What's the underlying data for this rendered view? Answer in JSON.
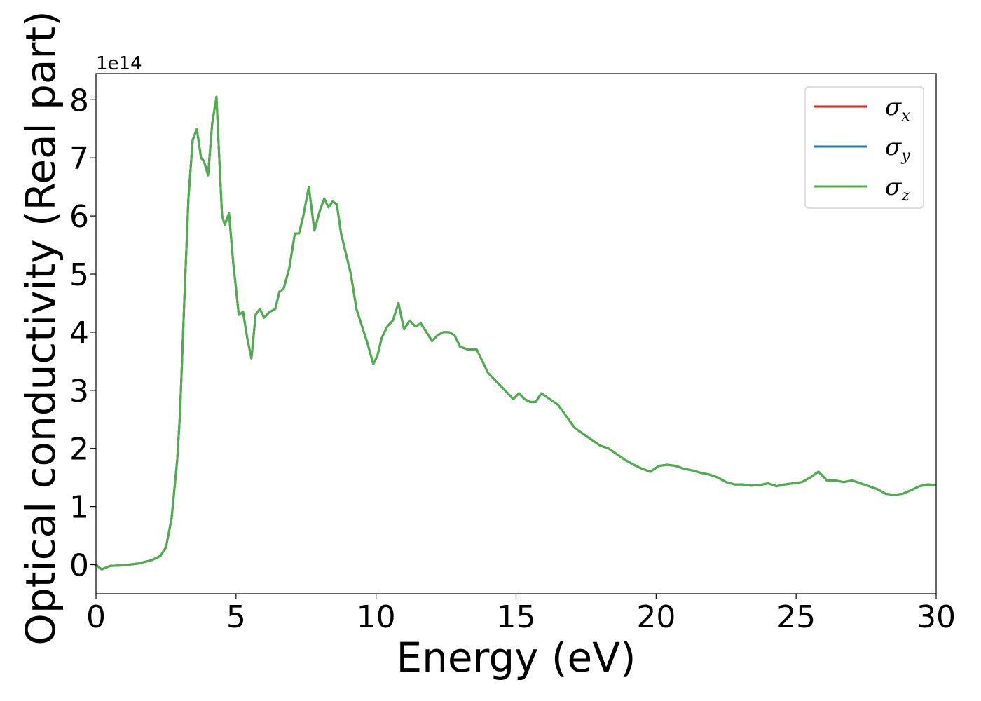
{
  "chart_data": {
    "type": "line",
    "xlabel": "Energy (eV)",
    "ylabel": "Optical conductivity (Real part)",
    "y_offset_label": "1e14",
    "xlim": [
      0,
      30
    ],
    "ylim": [
      -0.5,
      8.45
    ],
    "y_scale": 100000000000000.0,
    "x_ticks": [
      0,
      5,
      10,
      15,
      20,
      25,
      30
    ],
    "y_ticks": [
      0,
      1,
      2,
      3,
      4,
      5,
      6,
      7,
      8
    ],
    "legend_position": "top-right",
    "grid": false,
    "series": [
      {
        "name": "σx",
        "symbol": "σ",
        "subscript": "x",
        "color": "#d62728"
      },
      {
        "name": "σy",
        "symbol": "σ",
        "subscript": "y",
        "color": "#1f77b4"
      },
      {
        "name": "σz",
        "symbol": "σ",
        "subscript": "z",
        "color": "#4daf4a"
      }
    ],
    "x": [
      0,
      0.2,
      0.5,
      1.0,
      1.5,
      2.0,
      2.3,
      2.5,
      2.7,
      2.9,
      3.0,
      3.15,
      3.3,
      3.45,
      3.6,
      3.75,
      3.85,
      4.0,
      4.15,
      4.3,
      4.4,
      4.5,
      4.6,
      4.75,
      4.9,
      5.1,
      5.25,
      5.4,
      5.55,
      5.7,
      5.85,
      6.0,
      6.2,
      6.4,
      6.55,
      6.7,
      6.9,
      7.1,
      7.25,
      7.4,
      7.6,
      7.8,
      8.0,
      8.15,
      8.3,
      8.45,
      8.6,
      8.75,
      8.9,
      9.1,
      9.3,
      9.5,
      9.7,
      9.9,
      10.05,
      10.2,
      10.4,
      10.6,
      10.8,
      11.0,
      11.2,
      11.4,
      11.6,
      11.8,
      12.0,
      12.2,
      12.4,
      12.6,
      12.8,
      13.0,
      13.3,
      13.6,
      13.8,
      14.0,
      14.3,
      14.6,
      14.9,
      15.1,
      15.3,
      15.5,
      15.7,
      15.9,
      16.2,
      16.5,
      16.8,
      17.1,
      17.4,
      17.7,
      18.0,
      18.3,
      18.6,
      18.9,
      19.2,
      19.5,
      19.8,
      20.1,
      20.4,
      20.7,
      21.0,
      21.3,
      21.6,
      21.9,
      22.2,
      22.5,
      22.8,
      23.1,
      23.4,
      23.7,
      24.0,
      24.3,
      24.6,
      24.9,
      25.2,
      25.5,
      25.8,
      26.1,
      26.4,
      26.7,
      27.0,
      27.3,
      27.6,
      27.9,
      28.2,
      28.5,
      28.8,
      29.1,
      29.4,
      29.7,
      30.0
    ],
    "values": [
      0.0,
      -0.08,
      -0.02,
      -0.01,
      0.02,
      0.08,
      0.15,
      0.3,
      0.8,
      1.8,
      2.6,
      4.5,
      6.3,
      7.3,
      7.5,
      7.0,
      6.95,
      6.7,
      7.6,
      8.05,
      7.0,
      6.0,
      5.85,
      6.05,
      5.2,
      4.3,
      4.35,
      3.9,
      3.55,
      4.3,
      4.4,
      4.25,
      4.35,
      4.4,
      4.7,
      4.75,
      5.1,
      5.7,
      5.7,
      6.0,
      6.5,
      5.75,
      6.1,
      6.3,
      6.15,
      6.25,
      6.2,
      5.7,
      5.4,
      5.0,
      4.4,
      4.1,
      3.8,
      3.45,
      3.6,
      3.9,
      4.1,
      4.2,
      4.5,
      4.05,
      4.2,
      4.1,
      4.15,
      4.0,
      3.85,
      3.95,
      4.0,
      4.0,
      3.95,
      3.75,
      3.7,
      3.7,
      3.5,
      3.3,
      3.15,
      3.0,
      2.85,
      2.95,
      2.85,
      2.8,
      2.8,
      2.95,
      2.85,
      2.75,
      2.55,
      2.35,
      2.25,
      2.15,
      2.05,
      2.0,
      1.9,
      1.8,
      1.72,
      1.65,
      1.6,
      1.7,
      1.72,
      1.7,
      1.65,
      1.62,
      1.58,
      1.55,
      1.5,
      1.42,
      1.38,
      1.38,
      1.36,
      1.37,
      1.4,
      1.35,
      1.38,
      1.4,
      1.42,
      1.5,
      1.6,
      1.45,
      1.45,
      1.42,
      1.45,
      1.4,
      1.35,
      1.3,
      1.22,
      1.2,
      1.22,
      1.28,
      1.35,
      1.38,
      1.37
    ]
  }
}
